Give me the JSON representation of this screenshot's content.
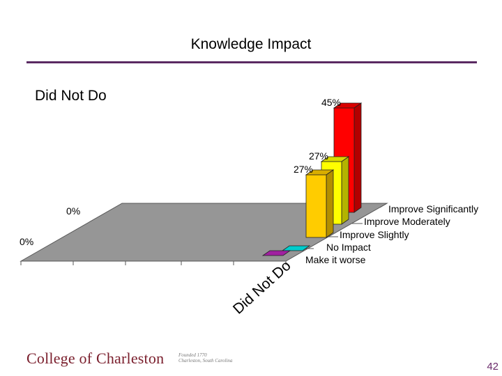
{
  "slide": {
    "title": "Knowledge Impact",
    "subtitle": "Did Not Do",
    "page_number": "42",
    "footer": {
      "logo_text": "College of Charleston",
      "seal_line1": "Founded 1770",
      "seal_line2": "Charleston, South Carolina"
    }
  },
  "chart_data": {
    "type": "bar",
    "view": "3d",
    "category": "Did Not Do",
    "series": [
      {
        "name": "Improve Significantly",
        "value": 45,
        "label": "45%",
        "color": "#ff0000"
      },
      {
        "name": "Improve Moderately",
        "value": 27,
        "label": "27%",
        "color": "#ffff00"
      },
      {
        "name": "Improve Slightly",
        "value": 27,
        "label": "27%",
        "color": "#ffcc00"
      },
      {
        "name": "No Impact",
        "value": 0,
        "label": "",
        "color": "#00cccc"
      },
      {
        "name": "Make it worse",
        "value": 0,
        "label": "",
        "color": "#a020a0"
      }
    ],
    "axis_labels": [
      "0%",
      "0%"
    ],
    "floor_color": "#969696",
    "grid": false
  }
}
